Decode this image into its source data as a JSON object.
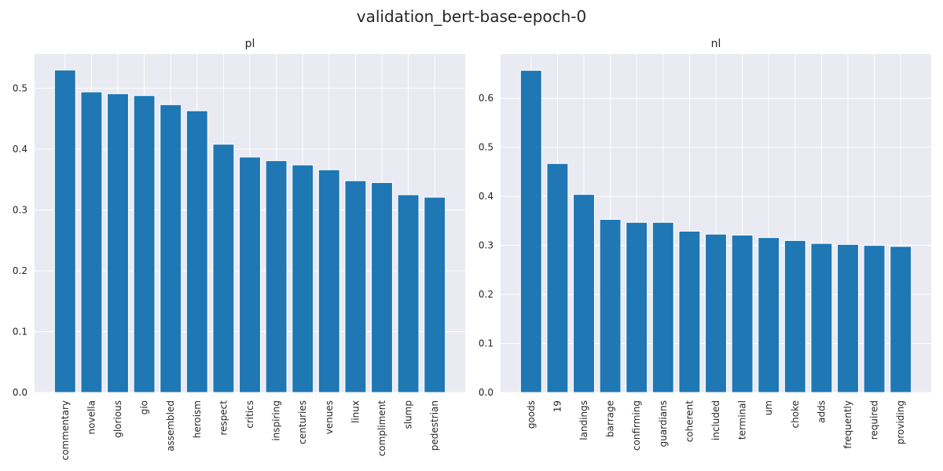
{
  "figure": {
    "title": "validation_bert-base-epoch-0"
  },
  "style": {
    "bar_color": "#1f77b4",
    "plot_bg": "#eaeaf2",
    "grid_color": "#ffffff"
  },
  "chart_data": [
    {
      "type": "bar",
      "title": "pl",
      "xlabel": "",
      "ylabel": "",
      "categories": [
        "commentary",
        "novella",
        "glorious",
        "gio",
        "assembled",
        "heroism",
        "respect",
        "critics",
        "inspiring",
        "centuries",
        "venues",
        "linux",
        "compliment",
        "slump",
        "pedestrian"
      ],
      "values": [
        0.53,
        0.494,
        0.491,
        0.488,
        0.473,
        0.463,
        0.408,
        0.387,
        0.381,
        0.374,
        0.366,
        0.348,
        0.345,
        0.325,
        0.321
      ],
      "ylim": [
        0,
        0.556
      ],
      "yticks": [
        0.0,
        0.1,
        0.2,
        0.3,
        0.4,
        0.5
      ],
      "ytick_labels": [
        "0.0",
        "0.1",
        "0.2",
        "0.3",
        "0.4",
        "0.5"
      ],
      "grid": true,
      "legend": "none"
    },
    {
      "type": "bar",
      "title": "nl",
      "xlabel": "",
      "ylabel": "",
      "categories": [
        "goods",
        "19",
        "landings",
        "barrage",
        "confirming",
        "guardians",
        "coherent",
        "included",
        "terminal",
        "um",
        "choke",
        "adds",
        "frequently",
        "required",
        "providing"
      ],
      "values": [
        0.657,
        0.467,
        0.404,
        0.353,
        0.347,
        0.347,
        0.329,
        0.323,
        0.321,
        0.316,
        0.31,
        0.304,
        0.302,
        0.3,
        0.298
      ],
      "ylim": [
        0,
        0.69
      ],
      "yticks": [
        0.0,
        0.1,
        0.2,
        0.3,
        0.4,
        0.5,
        0.6
      ],
      "ytick_labels": [
        "0.0",
        "0.1",
        "0.2",
        "0.3",
        "0.4",
        "0.5",
        "0.6"
      ],
      "grid": true,
      "legend": "none"
    }
  ]
}
